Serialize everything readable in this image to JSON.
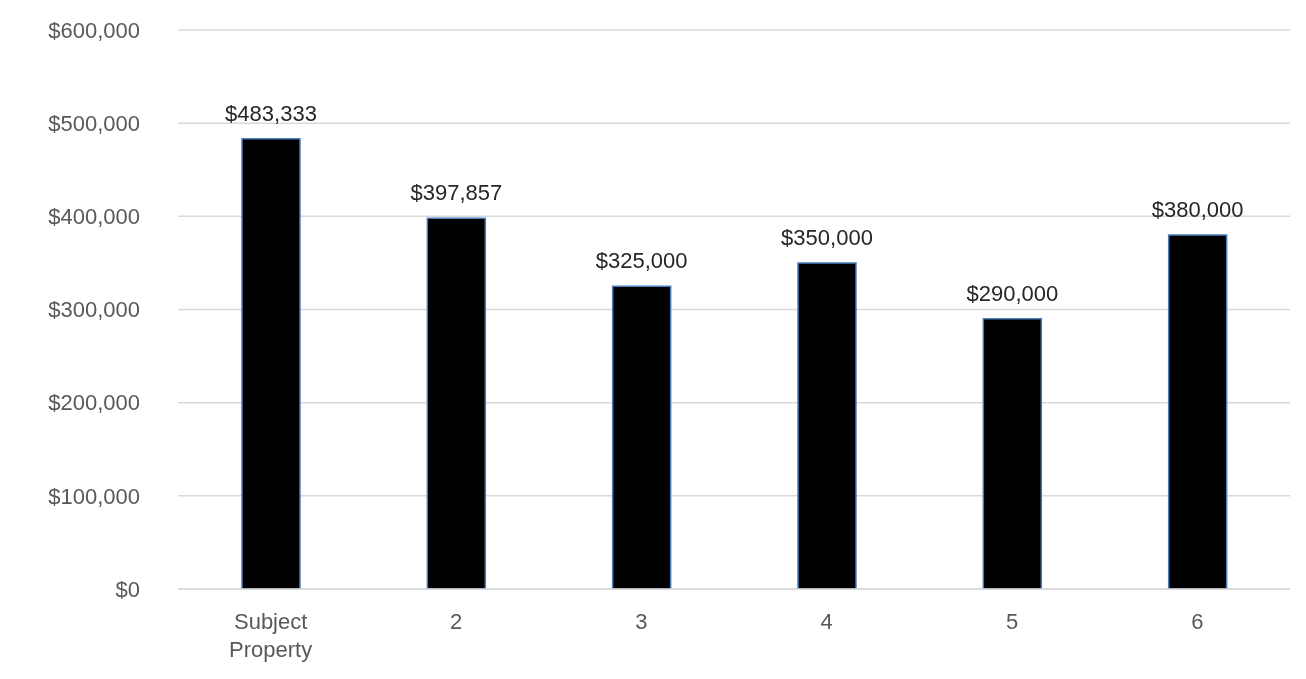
{
  "chart_data": {
    "type": "bar",
    "categories": [
      "Subject Property",
      "2",
      "3",
      "4",
      "5",
      "6"
    ],
    "series": [
      {
        "color": "#000000",
        "values": [
          483333,
          397857,
          325000,
          350000,
          290000,
          380000
        ],
        "value_labels": [
          "$483,333",
          "$397,857",
          "$325,000",
          "$350,000",
          "$290,000",
          "$380,000"
        ]
      }
    ],
    "ylim": [
      0,
      600000
    ],
    "yticks": [
      {
        "value": 0,
        "label": "$0"
      },
      {
        "value": 100000,
        "label": "$100,000"
      },
      {
        "value": 200000,
        "label": "$200,000"
      },
      {
        "value": 300000,
        "label": "$300,000"
      },
      {
        "value": 400000,
        "label": "$400,000"
      },
      {
        "value": 500000,
        "label": "$500,000"
      },
      {
        "value": 600000,
        "label": "$600,000"
      }
    ],
    "grid": "y",
    "legend": false
  }
}
